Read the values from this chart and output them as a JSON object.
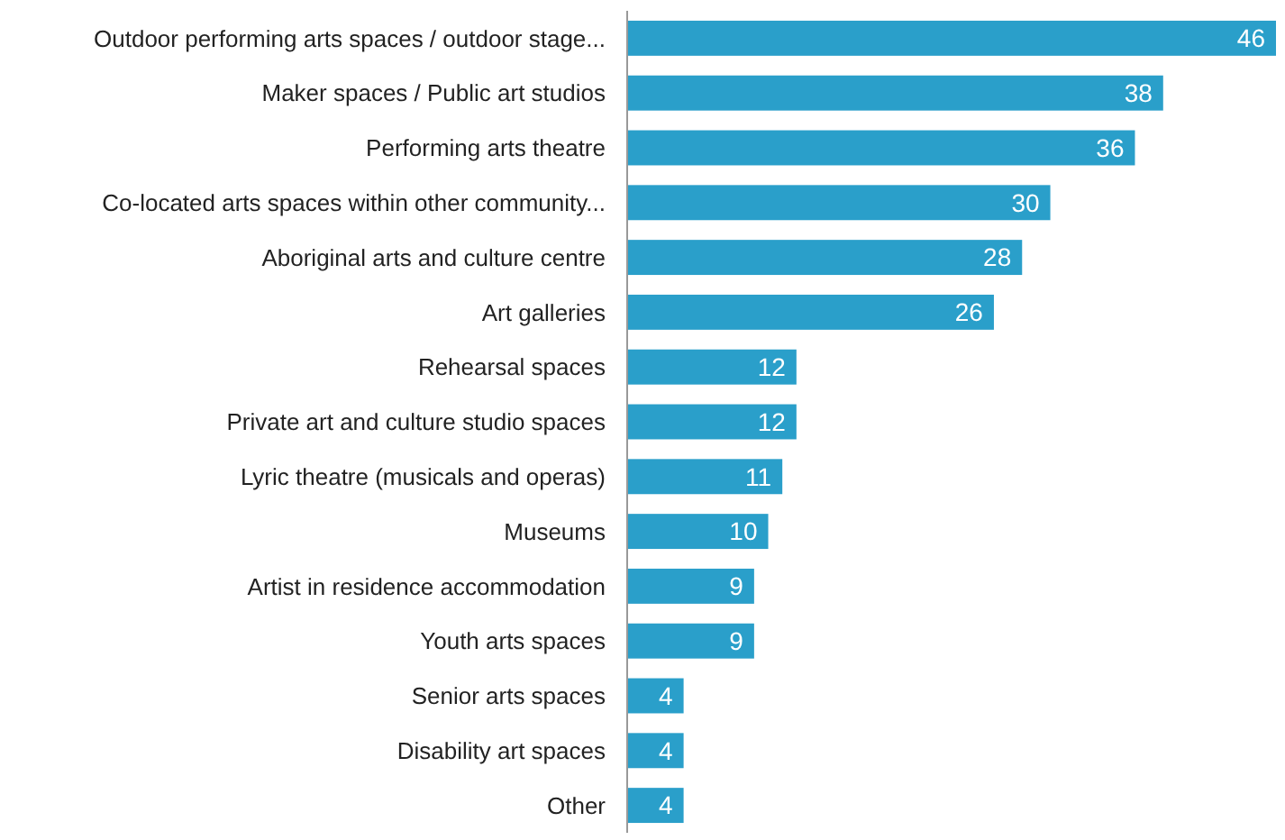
{
  "chart_data": {
    "type": "bar",
    "orientation": "horizontal",
    "data_labels": true,
    "categories": [
      "Outdoor performing arts spaces / outdoor stage...",
      "Maker spaces / Public art studios",
      "Performing arts theatre",
      "Co-located arts spaces within other community...",
      "Aboriginal arts and culture centre",
      "Art galleries",
      "Rehearsal spaces",
      "Private art and culture studio spaces",
      "Lyric theatre (musicals and operas)",
      "Museums",
      "Artist in residence accommodation",
      "Youth arts spaces",
      "Senior arts spaces",
      "Disability art spaces",
      "Other"
    ],
    "values": [
      46,
      38,
      36,
      30,
      28,
      26,
      12,
      12,
      11,
      10,
      9,
      9,
      4,
      4,
      4
    ],
    "color": "#2a9fca"
  }
}
